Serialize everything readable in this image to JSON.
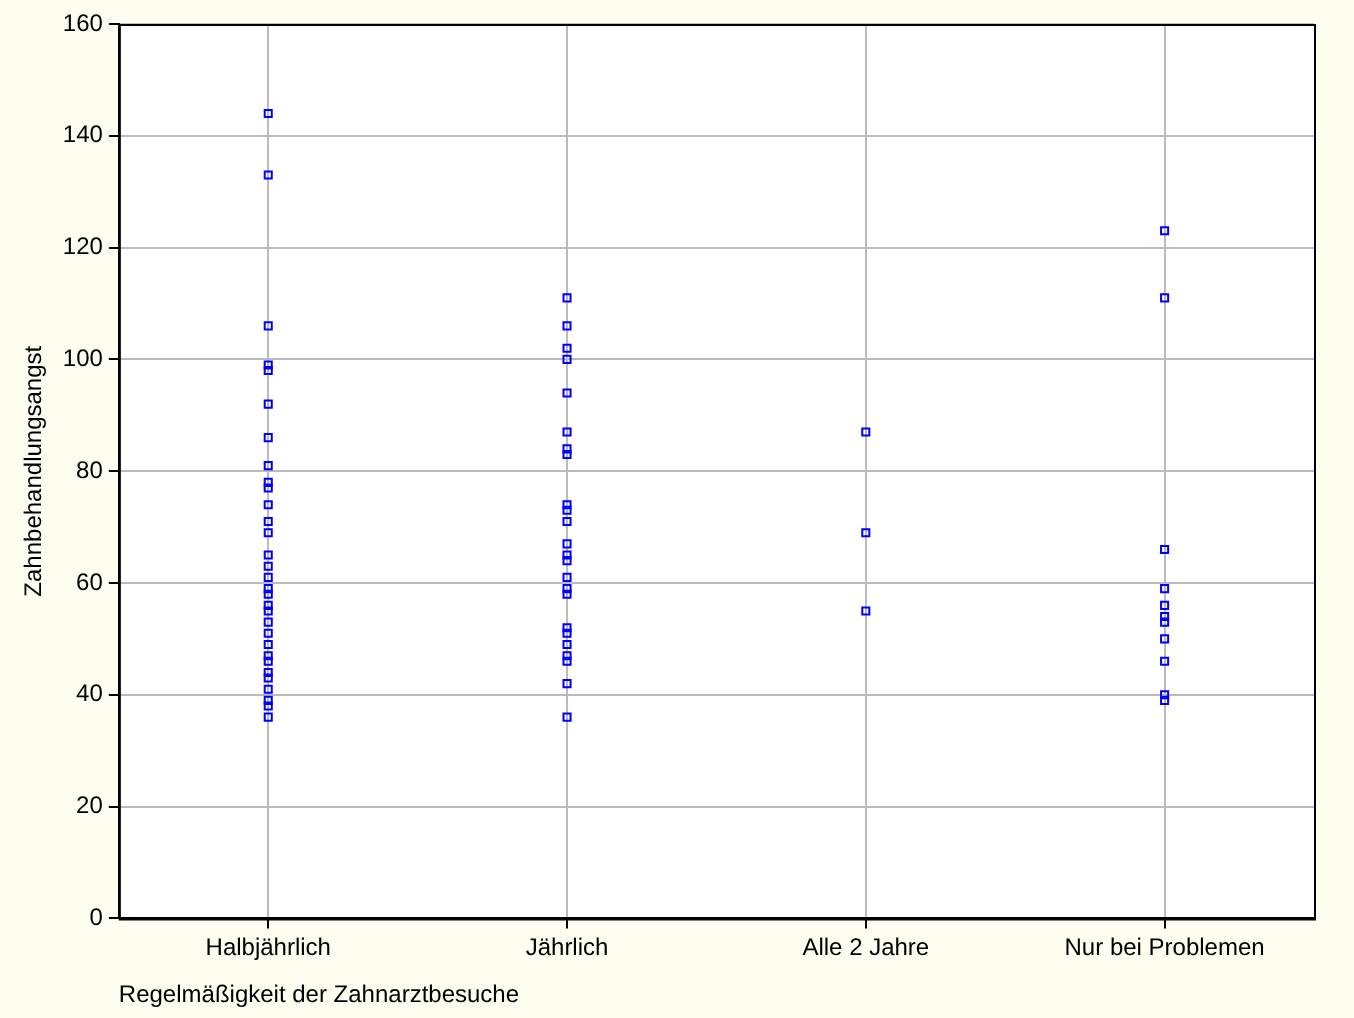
{
  "chart_data": {
    "type": "scatter",
    "xlabel": "Regelmäßigkeit der Zahnarztbesuche",
    "ylabel": "Zahnbehandlungsangst",
    "categories": [
      "Halbjährlich",
      "Jährlich",
      "Alle 2 Jahre",
      "Nur bei Problemen"
    ],
    "series": [
      {
        "color": "#0000ff",
        "x": [
          "Halbjährlich",
          "Halbjährlich",
          "Halbjährlich",
          "Halbjährlich",
          "Halbjährlich",
          "Halbjährlich",
          "Halbjährlich",
          "Halbjährlich",
          "Halbjährlich",
          "Halbjährlich",
          "Halbjährlich",
          "Halbjährlich",
          "Halbjährlich",
          "Halbjährlich",
          "Halbjährlich",
          "Halbjährlich",
          "Halbjährlich",
          "Halbjährlich",
          "Halbjährlich",
          "Halbjährlich",
          "Halbjährlich",
          "Halbjährlich",
          "Halbjährlich",
          "Halbjährlich",
          "Halbjährlich",
          "Halbjährlich",
          "Halbjährlich",
          "Halbjährlich",
          "Halbjährlich",
          "Halbjährlich",
          "Halbjährlich",
          "Jährlich",
          "Jährlich",
          "Jährlich",
          "Jährlich",
          "Jährlich",
          "Jährlich",
          "Jährlich",
          "Jährlich",
          "Jährlich",
          "Jährlich",
          "Jährlich",
          "Jährlich",
          "Jährlich",
          "Jährlich",
          "Jährlich",
          "Jährlich",
          "Jährlich",
          "Jährlich",
          "Jährlich",
          "Jährlich",
          "Jährlich",
          "Jährlich",
          "Jährlich",
          "Jährlich",
          "Alle 2 Jahre",
          "Alle 2 Jahre",
          "Alle 2 Jahre",
          "Nur bei Problemen",
          "Nur bei Problemen",
          "Nur bei Problemen",
          "Nur bei Problemen",
          "Nur bei Problemen",
          "Nur bei Problemen",
          "Nur bei Problemen",
          "Nur bei Problemen",
          "Nur bei Problemen",
          "Nur bei Problemen",
          "Nur bei Problemen"
        ],
        "values": [
          144,
          133,
          106,
          99,
          98,
          92,
          86,
          81,
          78,
          77,
          74,
          71,
          69,
          65,
          63,
          61,
          59,
          58,
          56,
          55,
          53,
          51,
          49,
          47,
          46,
          44,
          43,
          41,
          39,
          38,
          36,
          111,
          106,
          102,
          100,
          94,
          87,
          84,
          83,
          74,
          73,
          71,
          67,
          65,
          64,
          61,
          59,
          58,
          52,
          51,
          49,
          47,
          46,
          42,
          36,
          87,
          69,
          55,
          123,
          111,
          66,
          59,
          56,
          54,
          53,
          50,
          46,
          40,
          39
        ]
      }
    ],
    "ylim": [
      0,
      160
    ],
    "yticks": [
      0,
      20,
      40,
      60,
      80,
      100,
      120,
      140,
      160
    ],
    "grid": true,
    "legend": false,
    "marker": "square"
  }
}
